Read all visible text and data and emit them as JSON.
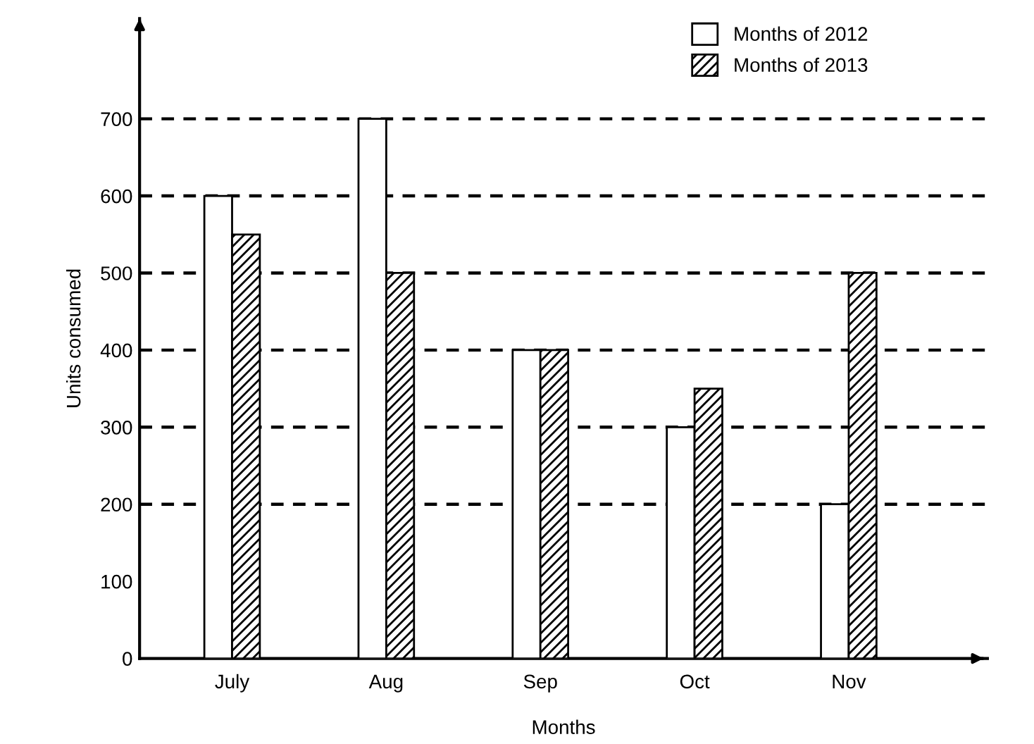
{
  "chart_data": {
    "type": "bar",
    "xlabel": "Months",
    "ylabel": "Units consumed",
    "categories": [
      "July",
      "Aug",
      "Sep",
      "Oct",
      "Nov"
    ],
    "series": [
      {
        "name": "Months of 2012",
        "color": "#ffffff",
        "values": [
          600,
          700,
          400,
          300,
          200
        ]
      },
      {
        "name": "Months of 2013",
        "color": "#000000",
        "values": [
          550,
          500,
          400,
          350,
          500
        ]
      }
    ],
    "ylim": [
      0,
      830
    ],
    "yticks": [
      0,
      100,
      200,
      300,
      400,
      500,
      600,
      700
    ],
    "ref_lines": [
      {
        "axis": "y",
        "value": 200,
        "color": "#000000",
        "line_style": "dashed"
      },
      {
        "axis": "y",
        "value": 300,
        "color": "#000000",
        "line_style": "dashed"
      },
      {
        "axis": "y",
        "value": 400,
        "color": "#000000",
        "line_style": "dashed"
      },
      {
        "axis": "y",
        "value": 500,
        "color": "#000000",
        "line_style": "dashed"
      },
      {
        "axis": "y",
        "value": 600,
        "color": "#000000",
        "line_style": "dashed"
      },
      {
        "axis": "y",
        "value": 700,
        "color": "#000000",
        "line_style": "dashed"
      }
    ],
    "legend": "top right"
  }
}
